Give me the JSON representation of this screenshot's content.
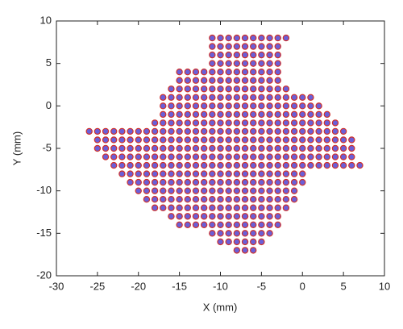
{
  "chart_data": {
    "type": "scatter",
    "xlabel": "X (mm)",
    "ylabel": "Y (mm)",
    "xlim": [
      -30,
      10
    ],
    "xticks": [
      -30,
      -25,
      -20,
      -15,
      -10,
      -5,
      0,
      5,
      10
    ],
    "ylim": [
      -20,
      10
    ],
    "yticks": [
      -20,
      -15,
      -10,
      -5,
      0,
      5,
      10
    ],
    "grid": false,
    "color": "#d0302a",
    "fill_color": "#6a5fd8",
    "x": [
      -11,
      -10,
      -9,
      -8,
      -7,
      -6,
      -5,
      -4,
      -3,
      -2,
      -11,
      -10,
      -9,
      -8,
      -7,
      -6,
      -5,
      -4,
      -3,
      -11,
      -10,
      -9,
      -8,
      -7,
      -6,
      -5,
      -4,
      -3,
      -11,
      -10,
      -9,
      -8,
      -7,
      -6,
      -5,
      -4,
      -3,
      -15,
      -14,
      -13,
      -12,
      -11,
      -10,
      -9,
      -8,
      -7,
      -6,
      -5,
      -4,
      -3,
      -15,
      -14,
      -13,
      -12,
      -11,
      -10,
      -9,
      -8,
      -7,
      -6,
      -5,
      -4,
      -3,
      -16,
      -15,
      -14,
      -13,
      -12,
      -11,
      -10,
      -9,
      -8,
      -7,
      -6,
      -5,
      -4,
      -3,
      -2,
      -17,
      -16,
      -15,
      -14,
      -13,
      -12,
      -11,
      -10,
      -9,
      -8,
      -7,
      -6,
      -5,
      -4,
      -3,
      -2,
      -1,
      0,
      1,
      -17,
      -16,
      -15,
      -14,
      -13,
      -12,
      -11,
      -10,
      -9,
      -8,
      -7,
      -6,
      -5,
      -4,
      -3,
      -2,
      -1,
      0,
      1,
      2,
      -17,
      -16,
      -15,
      -14,
      -13,
      -12,
      -11,
      -10,
      -9,
      -8,
      -7,
      -6,
      -5,
      -4,
      -3,
      -2,
      -1,
      0,
      1,
      2,
      3,
      -18,
      -17,
      -16,
      -15,
      -14,
      -13,
      -12,
      -11,
      -10,
      -9,
      -8,
      -7,
      -6,
      -5,
      -4,
      -3,
      -2,
      -1,
      0,
      1,
      2,
      3,
      4,
      -26,
      -25,
      -24,
      -23,
      -22,
      -21,
      -20,
      -19,
      -18,
      -17,
      -16,
      -15,
      -14,
      -13,
      -12,
      -11,
      -10,
      -9,
      -8,
      -7,
      -6,
      -5,
      -4,
      -3,
      -2,
      -1,
      0,
      1,
      2,
      3,
      4,
      5,
      -25,
      -24,
      -23,
      -22,
      -21,
      -20,
      -19,
      -18,
      -17,
      -16,
      -15,
      -14,
      -13,
      -12,
      -11,
      -10,
      -9,
      -8,
      -7,
      -6,
      -5,
      -4,
      -3,
      -2,
      -1,
      0,
      1,
      2,
      3,
      4,
      5,
      6,
      -25,
      -24,
      -23,
      -22,
      -21,
      -20,
      -19,
      -18,
      -17,
      -16,
      -15,
      -14,
      -13,
      -12,
      -11,
      -10,
      -9,
      -8,
      -7,
      -6,
      -5,
      -4,
      -3,
      -2,
      -1,
      0,
      1,
      2,
      3,
      4,
      5,
      6,
      -24,
      -23,
      -22,
      -21,
      -20,
      -19,
      -18,
      -17,
      -16,
      -15,
      -14,
      -13,
      -12,
      -11,
      -10,
      -9,
      -8,
      -7,
      -6,
      -5,
      -4,
      -3,
      -2,
      -1,
      0,
      1,
      2,
      3,
      4,
      5,
      6,
      -23,
      -22,
      -21,
      -20,
      -19,
      -18,
      -17,
      -16,
      -15,
      -14,
      -13,
      -12,
      -11,
      -10,
      -9,
      -8,
      -7,
      -6,
      -5,
      -4,
      -3,
      -2,
      -1,
      0,
      1,
      2,
      3,
      4,
      5,
      6,
      7,
      -22,
      -21,
      -20,
      -19,
      -18,
      -17,
      -16,
      -15,
      -14,
      -13,
      -12,
      -11,
      -10,
      -9,
      -8,
      -7,
      -6,
      -5,
      -4,
      -3,
      -2,
      -1,
      0,
      -21,
      -20,
      -19,
      -18,
      -17,
      -16,
      -15,
      -14,
      -13,
      -12,
      -11,
      -10,
      -9,
      -8,
      -7,
      -6,
      -5,
      -4,
      -3,
      -2,
      -1,
      0,
      -20,
      -19,
      -18,
      -17,
      -16,
      -15,
      -14,
      -13,
      -12,
      -11,
      -10,
      -9,
      -8,
      -7,
      -6,
      -5,
      -4,
      -3,
      -2,
      -1,
      -19,
      -18,
      -17,
      -16,
      -15,
      -14,
      -13,
      -12,
      -11,
      -10,
      -9,
      -8,
      -7,
      -6,
      -5,
      -4,
      -3,
      -2,
      -1,
      -18,
      -17,
      -16,
      -15,
      -14,
      -13,
      -12,
      -11,
      -10,
      -9,
      -8,
      -7,
      -6,
      -5,
      -4,
      -3,
      -2,
      -16,
      -15,
      -14,
      -13,
      -12,
      -11,
      -10,
      -9,
      -8,
      -7,
      -6,
      -5,
      -4,
      -3,
      -15,
      -14,
      -13,
      -12,
      -11,
      -10,
      -9,
      -8,
      -7,
      -6,
      -5,
      -4,
      -3,
      -11,
      -10,
      -9,
      -8,
      -7,
      -6,
      -5,
      -4,
      -10,
      -9,
      -8,
      -7,
      -6,
      -5,
      -8,
      -7,
      -6
    ],
    "values": [
      8,
      8,
      8,
      8,
      8,
      8,
      8,
      8,
      8,
      8,
      7,
      7,
      7,
      7,
      7,
      7,
      7,
      7,
      7,
      6,
      6,
      6,
      6,
      6,
      6,
      6,
      6,
      6,
      5,
      5,
      5,
      5,
      5,
      5,
      5,
      5,
      5,
      4,
      4,
      4,
      4,
      4,
      4,
      4,
      4,
      4,
      4,
      4,
      4,
      4,
      3,
      3,
      3,
      3,
      3,
      3,
      3,
      3,
      3,
      3,
      3,
      3,
      3,
      2,
      2,
      2,
      2,
      2,
      2,
      2,
      2,
      2,
      2,
      2,
      2,
      2,
      2,
      2,
      1,
      1,
      1,
      1,
      1,
      1,
      1,
      1,
      1,
      1,
      1,
      1,
      1,
      1,
      1,
      1,
      1,
      1,
      1,
      0,
      0,
      0,
      0,
      0,
      0,
      0,
      0,
      0,
      0,
      0,
      0,
      0,
      0,
      0,
      0,
      0,
      0,
      0,
      0,
      -1,
      -1,
      -1,
      -1,
      -1,
      -1,
      -1,
      -1,
      -1,
      -1,
      -1,
      -1,
      -1,
      -1,
      -1,
      -1,
      -1,
      -1,
      -1,
      -1,
      -1,
      -2,
      -2,
      -2,
      -2,
      -2,
      -2,
      -2,
      -2,
      -2,
      -2,
      -2,
      -2,
      -2,
      -2,
      -2,
      -2,
      -2,
      -2,
      -2,
      -2,
      -2,
      -2,
      -2,
      -3,
      -3,
      -3,
      -3,
      -3,
      -3,
      -3,
      -3,
      -3,
      -3,
      -3,
      -3,
      -3,
      -3,
      -3,
      -3,
      -3,
      -3,
      -3,
      -3,
      -3,
      -3,
      -3,
      -3,
      -3,
      -3,
      -3,
      -3,
      -3,
      -3,
      -3,
      -3,
      -4,
      -4,
      -4,
      -4,
      -4,
      -4,
      -4,
      -4,
      -4,
      -4,
      -4,
      -4,
      -4,
      -4,
      -4,
      -4,
      -4,
      -4,
      -4,
      -4,
      -4,
      -4,
      -4,
      -4,
      -4,
      -4,
      -4,
      -4,
      -4,
      -4,
      -4,
      -4,
      -5,
      -5,
      -5,
      -5,
      -5,
      -5,
      -5,
      -5,
      -5,
      -5,
      -5,
      -5,
      -5,
      -5,
      -5,
      -5,
      -5,
      -5,
      -5,
      -5,
      -5,
      -5,
      -5,
      -5,
      -5,
      -5,
      -5,
      -5,
      -5,
      -5,
      -5,
      -5,
      -6,
      -6,
      -6,
      -6,
      -6,
      -6,
      -6,
      -6,
      -6,
      -6,
      -6,
      -6,
      -6,
      -6,
      -6,
      -6,
      -6,
      -6,
      -6,
      -6,
      -6,
      -6,
      -6,
      -6,
      -6,
      -6,
      -6,
      -6,
      -6,
      -6,
      -6,
      -7,
      -7,
      -7,
      -7,
      -7,
      -7,
      -7,
      -7,
      -7,
      -7,
      -7,
      -7,
      -7,
      -7,
      -7,
      -7,
      -7,
      -7,
      -7,
      -7,
      -7,
      -7,
      -7,
      -7,
      -7,
      -7,
      -7,
      -7,
      -7,
      -7,
      -7,
      -8,
      -8,
      -8,
      -8,
      -8,
      -8,
      -8,
      -8,
      -8,
      -8,
      -8,
      -8,
      -8,
      -8,
      -8,
      -8,
      -8,
      -8,
      -8,
      -8,
      -8,
      -8,
      -8,
      -9,
      -9,
      -9,
      -9,
      -9,
      -9,
      -9,
      -9,
      -9,
      -9,
      -9,
      -9,
      -9,
      -9,
      -9,
      -9,
      -9,
      -9,
      -9,
      -9,
      -9,
      -9,
      -10,
      -10,
      -10,
      -10,
      -10,
      -10,
      -10,
      -10,
      -10,
      -10,
      -10,
      -10,
      -10,
      -10,
      -10,
      -10,
      -10,
      -10,
      -10,
      -10,
      -11,
      -11,
      -11,
      -11,
      -11,
      -11,
      -11,
      -11,
      -11,
      -11,
      -11,
      -11,
      -11,
      -11,
      -11,
      -11,
      -11,
      -11,
      -11,
      -12,
      -12,
      -12,
      -12,
      -12,
      -12,
      -12,
      -12,
      -12,
      -12,
      -12,
      -12,
      -12,
      -12,
      -12,
      -12,
      -12,
      -13,
      -13,
      -13,
      -13,
      -13,
      -13,
      -13,
      -13,
      -13,
      -13,
      -13,
      -13,
      -13,
      -13,
      -14,
      -14,
      -14,
      -14,
      -14,
      -14,
      -14,
      -14,
      -14,
      -14,
      -14,
      -14,
      -14,
      -15,
      -15,
      -15,
      -15,
      -15,
      -15,
      -15,
      -15,
      -16,
      -16,
      -16,
      -16,
      -16,
      -16,
      -17,
      -17,
      -17
    ]
  }
}
